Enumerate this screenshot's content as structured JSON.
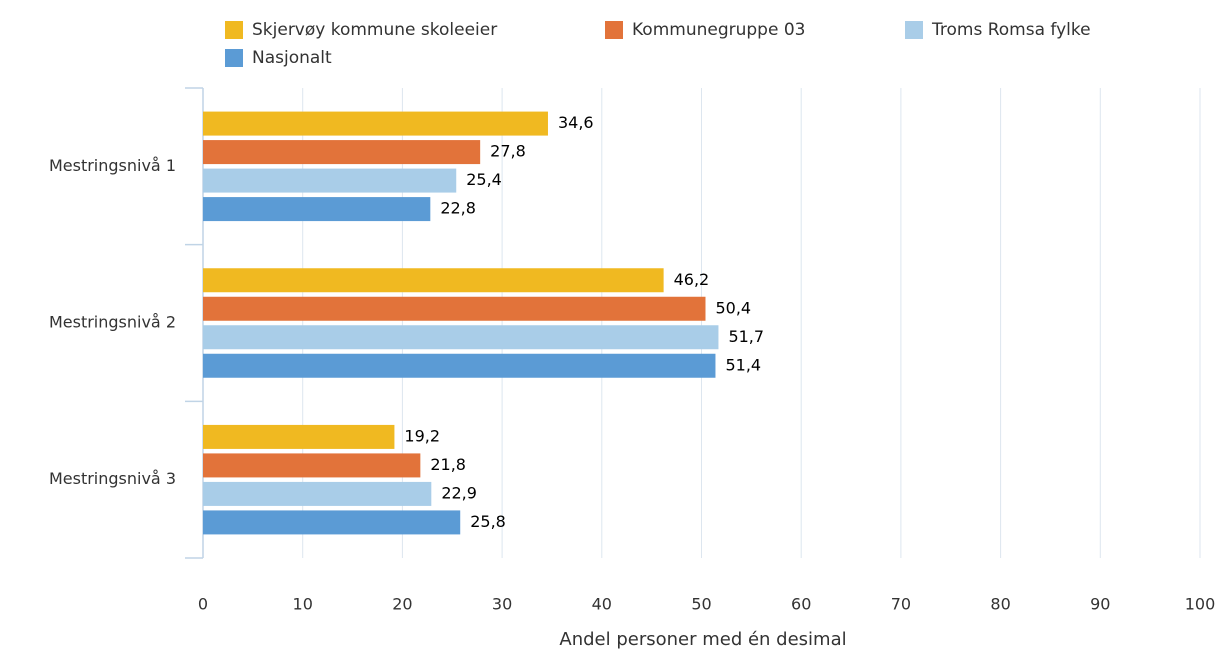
{
  "chart_data": {
    "type": "hbar",
    "categories": [
      "Mestringsnivå 1",
      "Mestringsnivå 2",
      "Mestringsnivå 3"
    ],
    "series": [
      {
        "name": "Skjervøy kommune skoleeier",
        "color": "#f0b921",
        "values": [
          34.6,
          46.2,
          19.2
        ],
        "value_labels": [
          "34,6",
          "46,2",
          "19,2"
        ]
      },
      {
        "name": "Kommunegruppe 03",
        "color": "#e2733a",
        "values": [
          27.8,
          50.4,
          21.8
        ],
        "value_labels": [
          "27,8",
          "50,4",
          "21,8"
        ]
      },
      {
        "name": "Troms Romsa fylke",
        "color": "#a9cde8",
        "values": [
          25.4,
          51.7,
          22.9
        ],
        "value_labels": [
          "25,4",
          "51,7",
          "22,9"
        ]
      },
      {
        "name": "Nasjonalt",
        "color": "#5b9bd5",
        "values": [
          22.8,
          51.4,
          25.8
        ],
        "value_labels": [
          "22,8",
          "51,4",
          "25,8"
        ]
      }
    ],
    "xlabel": "Andel personer med én desimal",
    "xlim": [
      0,
      100
    ],
    "xticks": [
      0,
      10,
      20,
      30,
      40,
      50,
      60,
      70,
      80,
      90,
      100
    ],
    "grid": true,
    "legend": "top"
  }
}
